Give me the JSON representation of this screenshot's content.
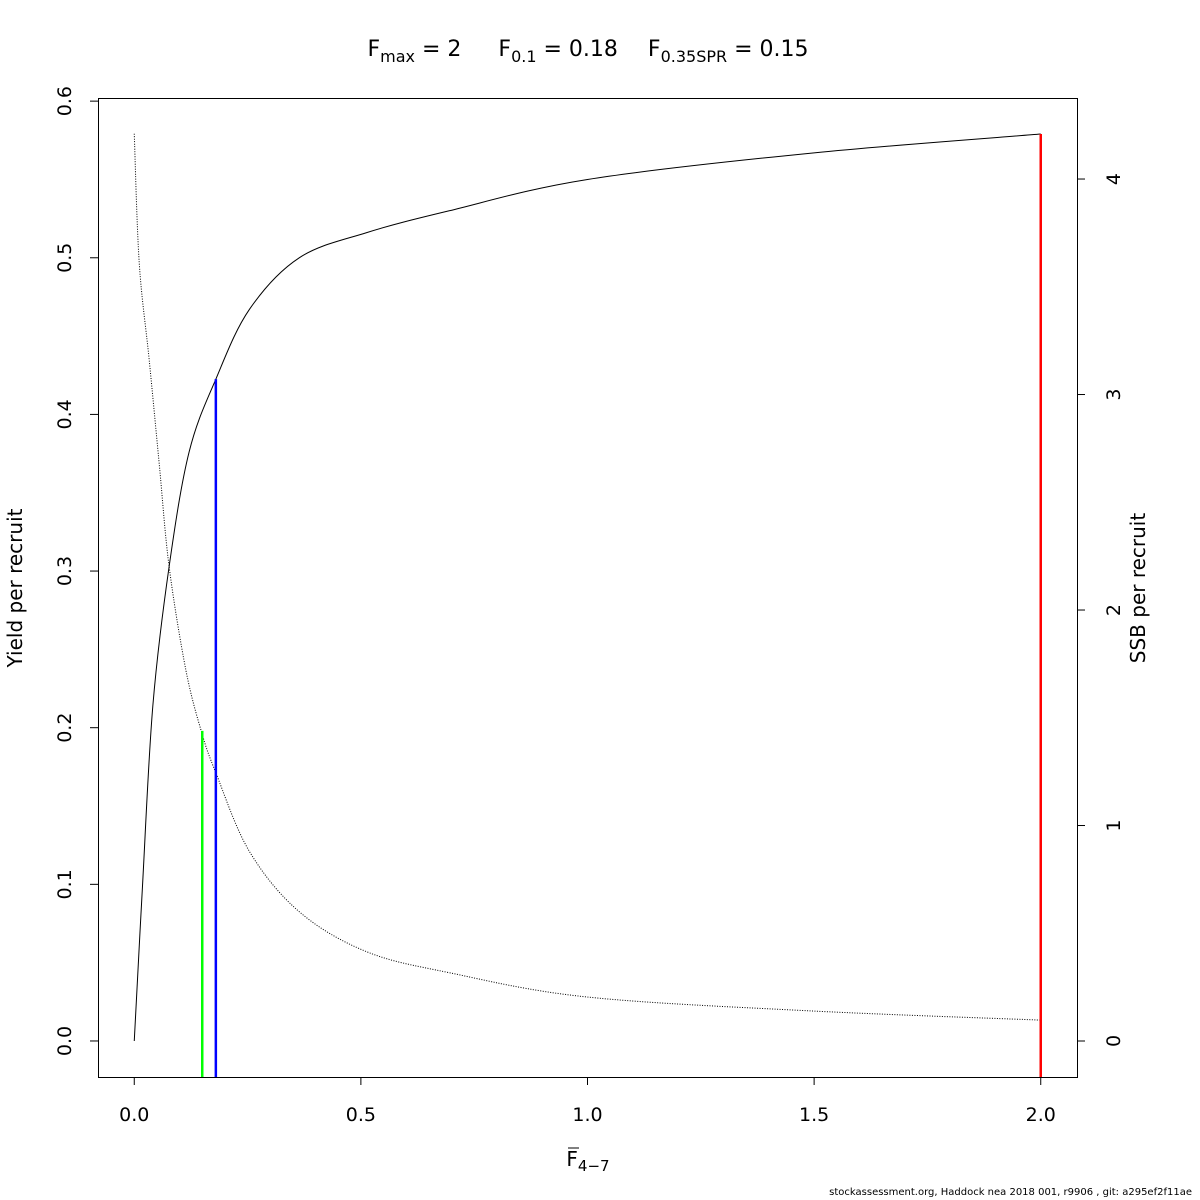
{
  "chart_data": {
    "type": "line",
    "title": {
      "parts": [
        {
          "base": "F",
          "sub": "max",
          "rest": " = 2"
        },
        {
          "base": "F",
          "sub": "0.1",
          "rest": " = 0.18"
        },
        {
          "base": "F",
          "sub": "0.35SPR",
          "rest": " = 0.15"
        }
      ]
    },
    "xlabel": {
      "base": "F",
      "sub": "4−7",
      "overline": true
    },
    "ylabel_left": "Yield per recruit",
    "ylabel_right": "SSB per recruit",
    "xlim": [
      -0.08,
      2.08
    ],
    "ylim_left": [
      -0.023,
      0.602
    ],
    "ylim_right": [
      -0.167,
      4.376
    ],
    "x_ticks": [
      "0.0",
      "0.5",
      "1.0",
      "1.5",
      "2.0"
    ],
    "y_ticks_left": [
      "0.0",
      "0.1",
      "0.2",
      "0.3",
      "0.4",
      "0.5",
      "0.6"
    ],
    "y_ticks_right": [
      "0",
      "1",
      "2",
      "3",
      "4"
    ],
    "grid": false,
    "series": [
      {
        "axis": "left",
        "style": "solid",
        "color": "#000000",
        "x": [
          0,
          0.018,
          0.041,
          0.077,
          0.121,
          0.18,
          0.254,
          0.364,
          0.512,
          0.695,
          1.0,
          1.5,
          2.0
        ],
        "y": [
          0,
          0.098,
          0.214,
          0.303,
          0.376,
          0.4225,
          0.467,
          0.5,
          0.516,
          0.53,
          0.55,
          0.567,
          0.579
        ]
      },
      {
        "axis": "right",
        "style": "dotted",
        "color": "#000000",
        "x": [
          0,
          0.011,
          0.033,
          0.055,
          0.077,
          0.114,
          0.149,
          0.18,
          0.254,
          0.364,
          0.512,
          0.695,
          1.0,
          1.5,
          2.0
        ],
        "y": [
          4.21,
          3.61,
          3.16,
          2.68,
          2.2,
          1.72,
          1.43,
          1.245,
          0.88,
          0.6,
          0.415,
          0.317,
          0.204,
          0.139,
          0.097
        ]
      }
    ],
    "reference_lines": [
      {
        "label": "Fmax",
        "x": 2.0,
        "top_left_axis": 0.579,
        "color": "#ff0000"
      },
      {
        "label": "F0.1",
        "x": 0.18,
        "top_left_axis": 0.4225,
        "color": "#0000ff"
      },
      {
        "label": "F0.35SPR",
        "x": 0.15,
        "top_left_axis": 0.198,
        "color": "#00ff00"
      }
    ]
  },
  "footer": "stockassessment.org, Haddock  nea  2018  001, r9906 , git: a295ef2f11ae"
}
